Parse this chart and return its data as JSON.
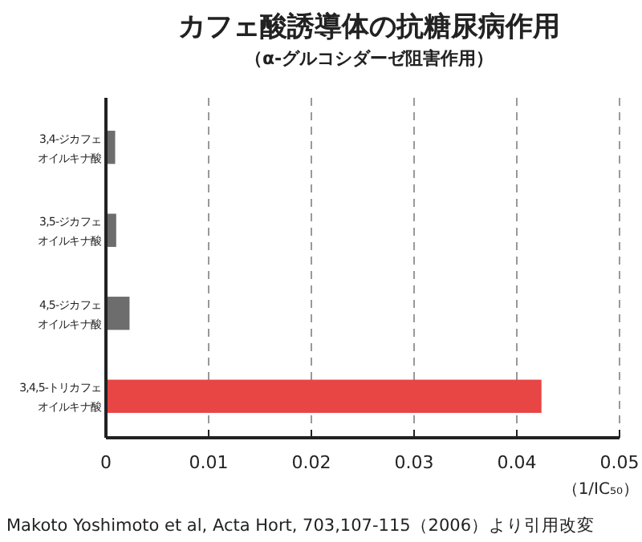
{
  "chart_data": {
    "type": "bar",
    "orientation": "horizontal",
    "title": "カフェ酸誘導体の抗糖尿病作用",
    "subtitle": "（α-グルコシダーゼ阻害作用）",
    "categories": [
      "3,4-ジカフェオイルキナ酸",
      "3,5-ジカフェオイルキナ酸",
      "4,5-ジカフェオイルキナ酸",
      "3,4,5-トリカフェオイルキナ酸"
    ],
    "values": [
      0.0009,
      0.001,
      0.0023,
      0.0424
    ],
    "colors": [
      "#6d6d6d",
      "#6d6d6d",
      "#6d6d6d",
      "#e84545"
    ],
    "xlim": [
      0,
      0.05
    ],
    "xticks": [
      0,
      0.01,
      0.02,
      0.03,
      0.04,
      0.05
    ],
    "xlabel": "（1/IC₅₀）",
    "grid": "x",
    "annotations": [
      "Makoto Yoshimoto et al, Acta Hort, 703,107-115（2006）より引用改変"
    ]
  }
}
